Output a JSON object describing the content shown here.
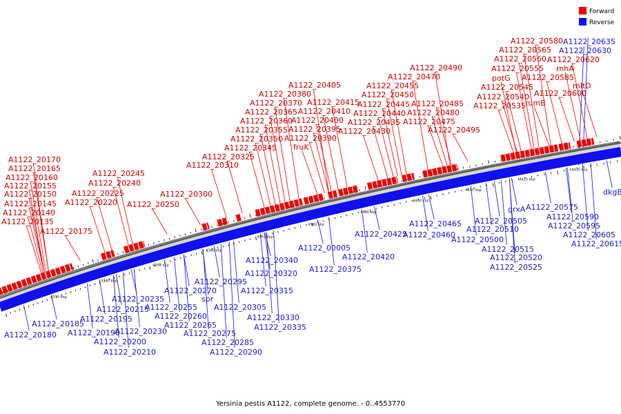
{
  "title": "Yersinia pestis A1122, complete genome. - 0..4553770",
  "legend": {
    "forward": {
      "label": "Forward",
      "color": "#ee0000"
    },
    "reverse": {
      "label": "Reverse",
      "color": "#1010ee"
    }
  },
  "backbone_colors": {
    "outer": "#7a7a7a",
    "inner": "#d6d6d6",
    "reverse_band": "#1010ee",
    "forward_block": "#ee0000"
  },
  "kbp_ticks": [
    "4330 kbp",
    "4340 kbp",
    "4350 kbp",
    "4360 kbp",
    "4370 kbp",
    "4380 kbp",
    "4390 kbp",
    "4400 kbp",
    "4410 kbp",
    "4420 kbp",
    "4430 kbp"
  ],
  "forward_genes": [
    "A1122_20170",
    "A1122_20165",
    "A1122_20160",
    "A1122_20155",
    "A1122_20150",
    "A1122_20145",
    "A1122_20140",
    "A1122_20135",
    "A1122_20175",
    "A1122_20245",
    "A1122_20240",
    "A1122_20225",
    "A1122_20220",
    "A1122_20250",
    "A1122_20300",
    "A1122_20310",
    "A1122_20325",
    "A1122_20345",
    "A1122_20350",
    "A1122_20355",
    "A1122_20360",
    "A1122_20365",
    "A1122_20370",
    "A1122_20380",
    "A1122_20405",
    "A1122_20415",
    "A1122_20410",
    "A1122_20400",
    "A1122_20395",
    "A1122_20390",
    "fruK",
    "A1122_20490",
    "A1122_20470",
    "A1122_20455",
    "A1122_20450",
    "A1122_20445",
    "A1122_20440",
    "A1122_20435",
    "A1122_20430",
    "A1122_20485",
    "A1122_20480",
    "A1122_20475",
    "A1122_20495",
    "A1122_20580",
    "A1122_20565",
    "A1122_20560",
    "A1122_20555",
    "potG",
    "A1122_20545",
    "A1122_20540",
    "A1122_20535",
    "A1122_20585",
    "rumB",
    "A1122_20600",
    "mltD",
    "rnhA",
    "A1122_20620"
  ],
  "reverse_genes": [
    "A1122_20635",
    "A1122_20630",
    "dkgB",
    "A1122_20575",
    "A1122_20590",
    "A1122_20595",
    "A1122_20605",
    "A1122_20615",
    "grxA",
    "A1122_20505",
    "A1122_20510",
    "A1122_20500",
    "A1122_20515",
    "A1122_20520",
    "A1122_20525",
    "A1122_20465",
    "A1122_20460",
    "A1122_20425",
    "A1122_20420",
    "A1122_00005",
    "A1122_20375",
    "A1122_20340",
    "A1122_20320",
    "A1122_20315",
    "A1122_20305",
    "A1122_20330",
    "A1122_20335",
    "A1122_20295",
    "A1122_20270",
    "spr",
    "A1122_20285",
    "A1122_20275",
    "A1122_20290",
    "A1122_20255",
    "A1122_20260",
    "A1122_20265",
    "A1122_20235",
    "A1122_20215",
    "A1122_20195",
    "A1122_20230",
    "A1122_20200",
    "A1122_20210",
    "A1122_20190",
    "A1122_20185",
    "A1122_20180"
  ]
}
